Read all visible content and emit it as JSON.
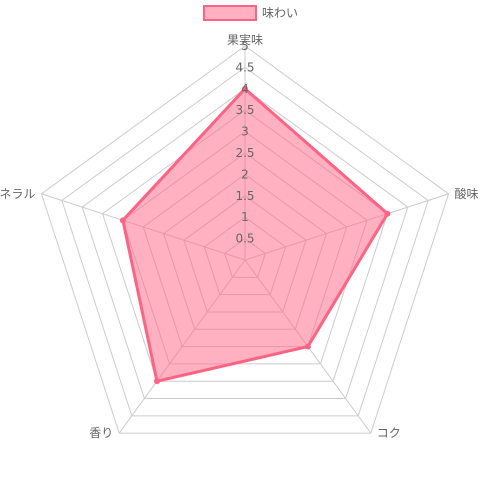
{
  "chart_data": {
    "type": "radar",
    "title": "",
    "legend": {
      "position": "top",
      "entries": [
        "味わい"
      ]
    },
    "axes": [
      "果実味",
      "酸味",
      "コク",
      "香り",
      "ミネラル"
    ],
    "scale": {
      "min": 0,
      "max": 5,
      "step": 0.5,
      "tick_labels": [
        "0.5",
        "1",
        "1.5",
        "2",
        "2.5",
        "3",
        "3.5",
        "4",
        "4.5",
        "5"
      ]
    },
    "series": [
      {
        "name": "味わい",
        "values": [
          4,
          3.5,
          2.5,
          3.5,
          3
        ],
        "fill": "rgba(255,99,132,0.5)",
        "stroke": "#ff6384"
      }
    ],
    "grid": true,
    "colors": {
      "grid": "#cccccc",
      "tick_text": "#666666",
      "axis_label": "#666666"
    }
  }
}
